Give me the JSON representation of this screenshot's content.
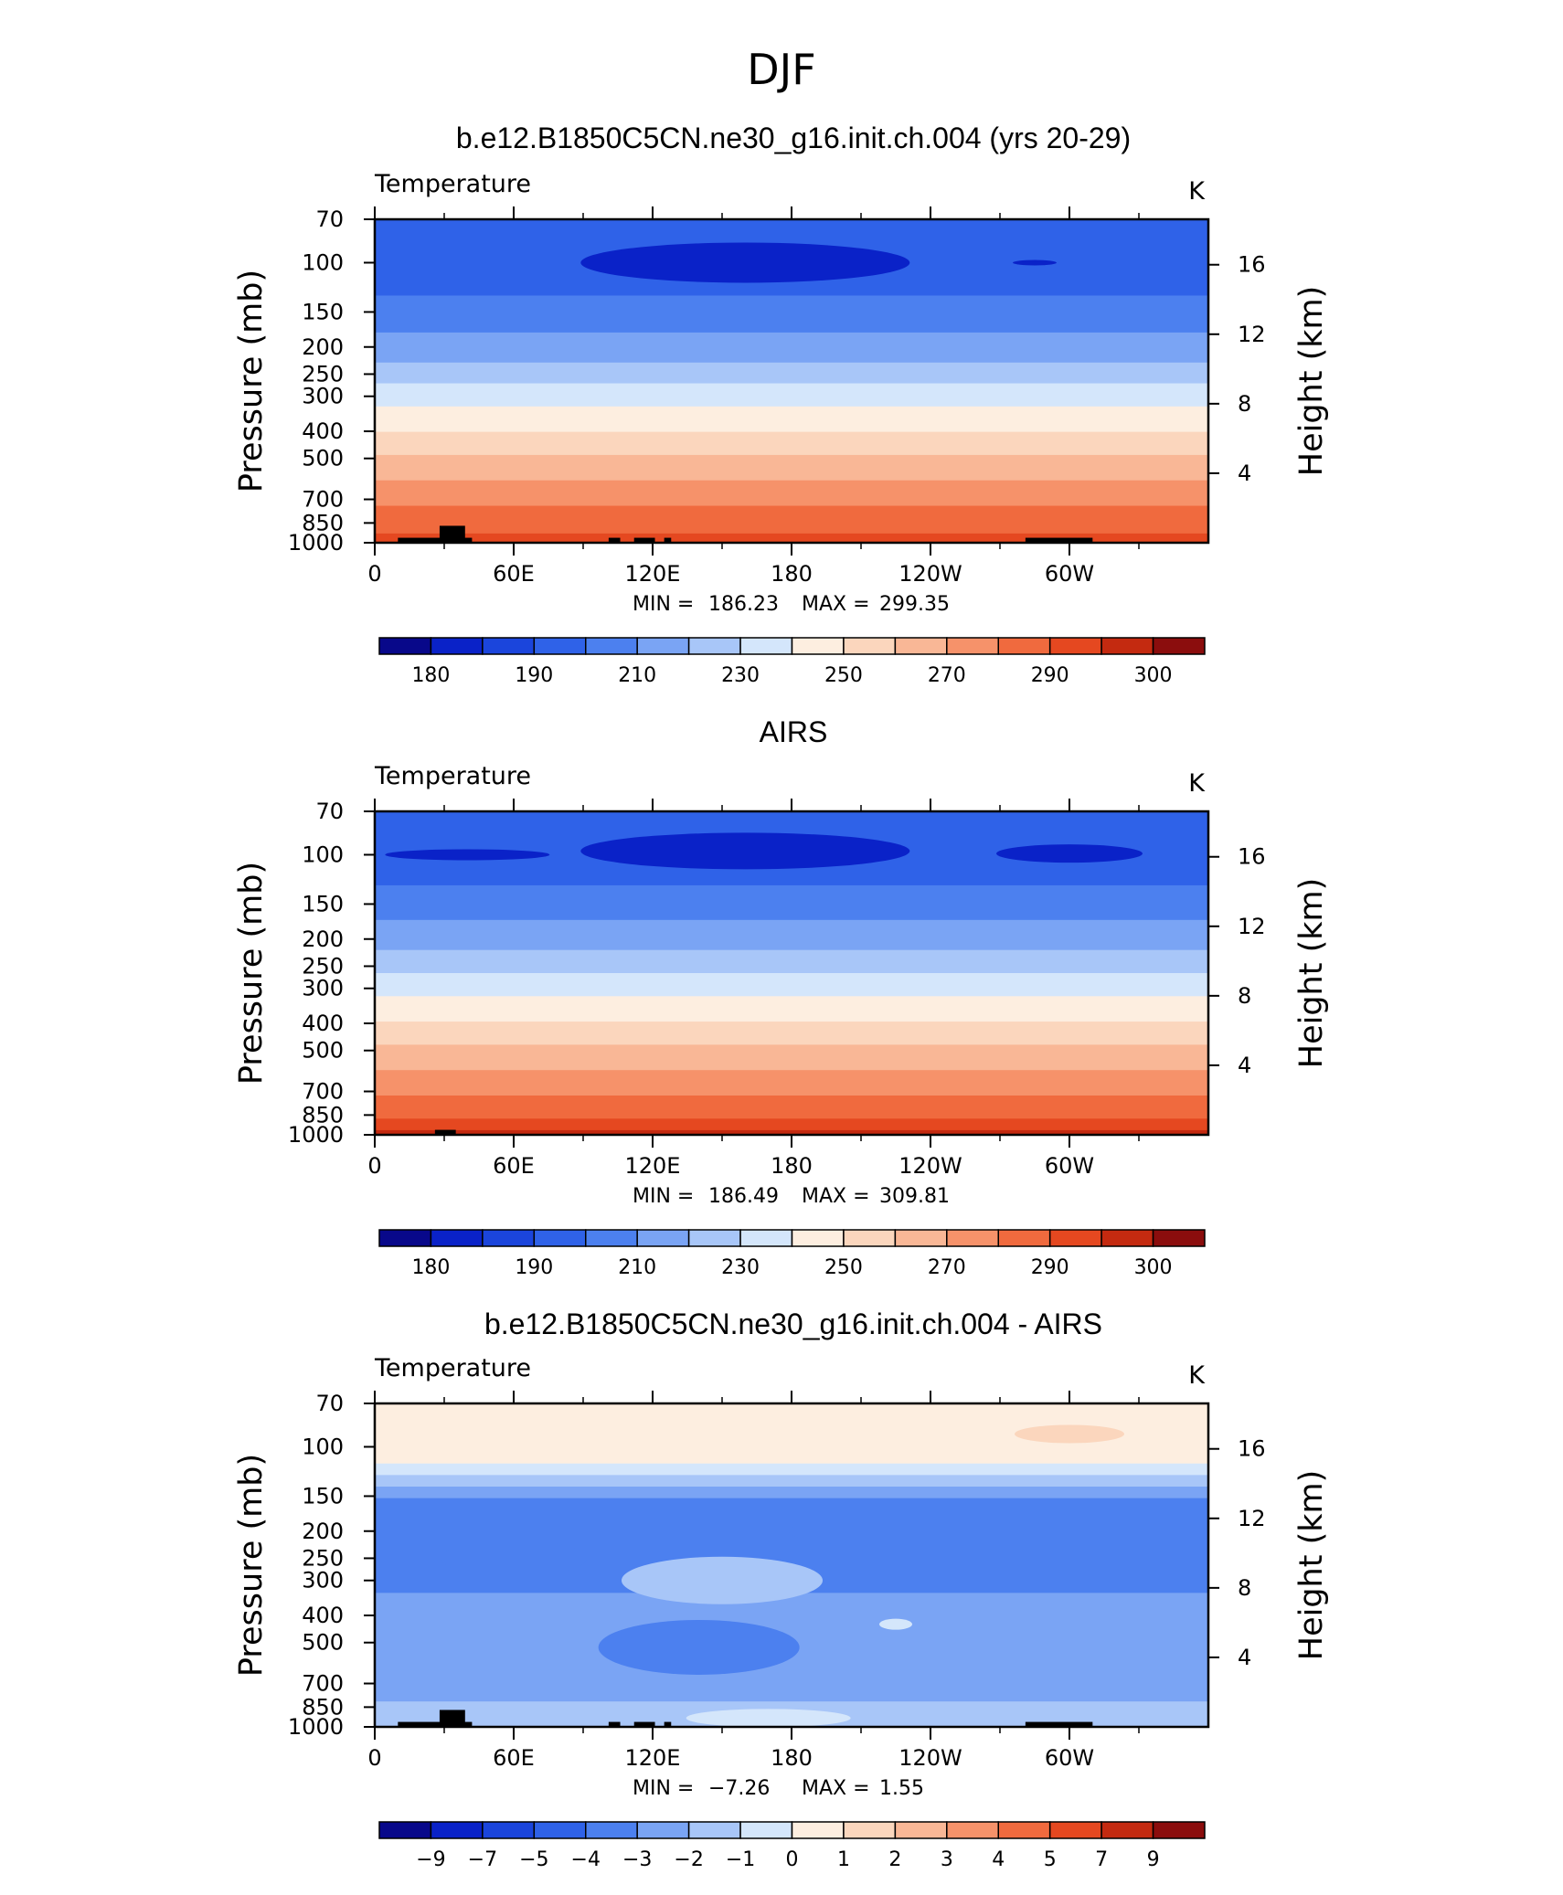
{
  "page_title": "DJF",
  "colors": {
    "temp_levels": [
      "#08088a",
      "#0a22c8",
      "#1b45dc",
      "#2f62e8",
      "#4c80ef",
      "#7aa4f4",
      "#a8c6f8",
      "#d4e6fb",
      "#fdeee0",
      "#fbd6bd",
      "#f9b796",
      "#f6926a",
      "#f06a3e",
      "#e54820",
      "#c42a10",
      "#8b0d0d"
    ],
    "diff_levels": [
      "#08088a",
      "#0a22c8",
      "#1b45dc",
      "#2f62e8",
      "#4c80ef",
      "#7aa4f4",
      "#a8c6f8",
      "#d4e6fb",
      "#fdeee0",
      "#fbd6bd",
      "#f9b796",
      "#f6926a",
      "#f06a3e",
      "#e54820",
      "#c42a10",
      "#8b0d0d"
    ],
    "land": "#000000"
  },
  "chart_data": [
    {
      "type": "heatmap",
      "title": "b.e12.B1850C5CN.ne30_g16.init.ch.004 (yrs 20-29)",
      "left_label": "Temperature",
      "units": "K",
      "ylabel": "Pressure  (mb)",
      "y2label": "Height  (km)",
      "x_ticks": [
        "0",
        "60E",
        "120E",
        "180",
        "120W",
        "60W"
      ],
      "x_values": [
        0,
        60,
        120,
        180,
        240,
        300
      ],
      "xlim": [
        0,
        360
      ],
      "y_ticks": [
        "70",
        "100",
        "150",
        "200",
        "250",
        "300",
        "400",
        "500",
        "700",
        "850",
        "1000"
      ],
      "y_values": [
        70,
        100,
        150,
        200,
        250,
        300,
        400,
        500,
        700,
        850,
        1000
      ],
      "ylim": [
        1000,
        70
      ],
      "y_scale": "log",
      "y2_ticks": [
        "16",
        "12",
        "8",
        "4"
      ],
      "y2_values": [
        16,
        12,
        8,
        4
      ],
      "min_label": "MIN  =",
      "min_value": "186.23",
      "max_label": "MAX  =",
      "max_value": "299.35",
      "colorbar_labels": [
        "180",
        "190",
        "210",
        "230",
        "250",
        "270",
        "290",
        "300"
      ],
      "colorbar_label_positions": [
        1,
        3,
        5,
        7,
        9,
        11,
        13,
        15
      ],
      "colorbar_boxes": 16,
      "levels_approx": [
        175,
        180,
        185,
        190,
        200,
        210,
        220,
        230,
        240,
        250,
        260,
        270,
        280,
        290,
        295,
        300
      ],
      "profile": [
        [
          70,
          196
        ],
        [
          100,
          193
        ],
        [
          120,
          197
        ],
        [
          150,
          205
        ],
        [
          200,
          214
        ],
        [
          250,
          226
        ],
        [
          300,
          236
        ],
        [
          400,
          250
        ],
        [
          500,
          262
        ],
        [
          700,
          278
        ],
        [
          850,
          287
        ],
        [
          1000,
          294
        ]
      ]
    },
    {
      "type": "heatmap",
      "title": "AIRS",
      "left_label": "Temperature",
      "units": "K",
      "ylabel": "Pressure  (mb)",
      "y2label": "Height  (km)",
      "x_ticks": [
        "0",
        "60E",
        "120E",
        "180",
        "120W",
        "60W"
      ],
      "x_values": [
        0,
        60,
        120,
        180,
        240,
        300
      ],
      "xlim": [
        0,
        360
      ],
      "y_ticks": [
        "70",
        "100",
        "150",
        "200",
        "250",
        "300",
        "400",
        "500",
        "700",
        "850",
        "1000"
      ],
      "y_values": [
        70,
        100,
        150,
        200,
        250,
        300,
        400,
        500,
        700,
        850,
        1000
      ],
      "ylim": [
        1000,
        70
      ],
      "y_scale": "log",
      "y2_ticks": [
        "16",
        "12",
        "8",
        "4"
      ],
      "y2_values": [
        16,
        12,
        8,
        4
      ],
      "min_label": "MIN  =",
      "min_value": "186.49",
      "max_label": "MAX  =",
      "max_value": "309.81",
      "colorbar_labels": [
        "180",
        "190",
        "210",
        "230",
        "250",
        "270",
        "290",
        "300"
      ],
      "colorbar_label_positions": [
        1,
        3,
        5,
        7,
        9,
        11,
        13,
        15
      ],
      "colorbar_boxes": 16,
      "levels_approx": [
        175,
        180,
        185,
        190,
        200,
        210,
        220,
        230,
        240,
        250,
        260,
        270,
        280,
        290,
        295,
        300
      ],
      "profile": [
        [
          70,
          197
        ],
        [
          100,
          194
        ],
        [
          120,
          198
        ],
        [
          150,
          206
        ],
        [
          200,
          216
        ],
        [
          250,
          227
        ],
        [
          300,
          237
        ],
        [
          400,
          251
        ],
        [
          500,
          263
        ],
        [
          700,
          279
        ],
        [
          850,
          289
        ],
        [
          1000,
          298
        ]
      ]
    },
    {
      "type": "heatmap",
      "title": "b.e12.B1850C5CN.ne30_g16.init.ch.004 - AIRS",
      "left_label": "Temperature",
      "units": "K",
      "ylabel": "Pressure  (mb)",
      "y2label": "Height  (km)",
      "x_ticks": [
        "0",
        "60E",
        "120E",
        "180",
        "120W",
        "60W"
      ],
      "x_values": [
        0,
        60,
        120,
        180,
        240,
        300
      ],
      "xlim": [
        0,
        360
      ],
      "y_ticks": [
        "70",
        "100",
        "150",
        "200",
        "250",
        "300",
        "400",
        "500",
        "700",
        "850",
        "1000"
      ],
      "y_values": [
        70,
        100,
        150,
        200,
        250,
        300,
        400,
        500,
        700,
        850,
        1000
      ],
      "ylim": [
        1000,
        70
      ],
      "y_scale": "log",
      "y2_ticks": [
        "16",
        "12",
        "8",
        "4"
      ],
      "y2_values": [
        16,
        12,
        8,
        4
      ],
      "min_label": "MIN  =",
      "min_value": "−7.26",
      "max_label": "MAX  =",
      "max_value": "1.55",
      "colorbar_labels": [
        "−9",
        "−7",
        "−5",
        "−4",
        "−3",
        "−2",
        "−1",
        "0",
        "1",
        "2",
        "3",
        "4",
        "5",
        "7",
        "9"
      ],
      "colorbar_label_positions": [
        1,
        2,
        3,
        4,
        5,
        6,
        7,
        8,
        9,
        10,
        11,
        12,
        13,
        14,
        15
      ],
      "colorbar_boxes": 16,
      "levels_approx": [
        -10,
        -9,
        -7,
        -5,
        -4,
        -3,
        -2,
        -1,
        0,
        1,
        2,
        3,
        4,
        5,
        7,
        9
      ],
      "profile": [
        [
          70,
          0.5
        ],
        [
          110,
          0.3
        ],
        [
          130,
          -1.5
        ],
        [
          150,
          -3.0
        ],
        [
          200,
          -3.6
        ],
        [
          300,
          -3.2
        ],
        [
          400,
          -2.6
        ],
        [
          500,
          -3.0
        ],
        [
          700,
          -2.6
        ],
        [
          850,
          -1.8
        ],
        [
          1000,
          -1.0
        ]
      ]
    }
  ]
}
